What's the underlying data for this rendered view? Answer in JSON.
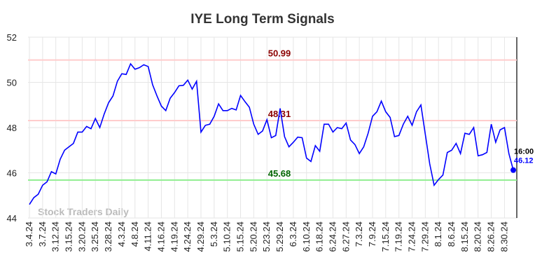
{
  "chart_data": {
    "type": "line",
    "title": "IYE Long Term Signals",
    "watermark": "Stock Traders Daily",
    "categories": [
      "3.4.24",
      null,
      null,
      "3.7.24",
      null,
      null,
      "3.12.24",
      null,
      null,
      "3.15.24",
      null,
      null,
      "3.20.24",
      null,
      null,
      "3.25.24",
      null,
      null,
      "3.28.24",
      null,
      null,
      "4.3.24",
      null,
      null,
      "4.8.24",
      null,
      null,
      "4.11.24",
      null,
      null,
      "4.16.24",
      null,
      null,
      "4.19.24",
      null,
      null,
      "4.24.24",
      null,
      null,
      "4.29.24",
      null,
      null,
      "5.3.24",
      null,
      null,
      "5.10.24",
      null,
      null,
      "5.15.24",
      null,
      null,
      "5.20.24",
      null,
      null,
      "5.23.24",
      null,
      null,
      "5.29.24",
      null,
      null,
      "6.3.24",
      null,
      null,
      "6.10.24",
      null,
      null,
      "6.18.24",
      null,
      null,
      "6.24.24",
      null,
      null,
      "6.27.24",
      null,
      null,
      "7.3.24",
      null,
      null,
      "7.9.24",
      null,
      null,
      "7.15.24",
      null,
      null,
      "7.19.24",
      null,
      null,
      "7.24.24",
      null,
      null,
      "7.29.24",
      null,
      null,
      "8.1.24",
      null,
      null,
      "8.6.24",
      null,
      null,
      "8.15.24",
      null,
      null,
      "8.20.24",
      null,
      null,
      "8.26.24",
      null,
      null,
      "8.30.24",
      null,
      null
    ],
    "series": [
      {
        "color": "#0000ff",
        "values": [
          44.6,
          44.9,
          45.05,
          45.45,
          45.6,
          46.05,
          45.95,
          46.6,
          47.0,
          47.15,
          47.3,
          47.8,
          47.8,
          48.05,
          47.95,
          48.4,
          48.0,
          48.6,
          49.1,
          49.4,
          50.05,
          50.38,
          50.35,
          50.82,
          50.58,
          50.65,
          50.78,
          50.7,
          49.9,
          49.4,
          48.95,
          48.75,
          49.3,
          49.55,
          49.85,
          49.87,
          50.1,
          49.7,
          50.05,
          47.8,
          48.1,
          48.15,
          48.5,
          49.05,
          48.75,
          48.75,
          48.85,
          48.78,
          49.42,
          49.15,
          48.9,
          48.15,
          47.7,
          47.85,
          48.35,
          47.55,
          47.65,
          48.85,
          47.6,
          47.15,
          47.35,
          47.58,
          47.55,
          46.65,
          46.5,
          47.2,
          46.95,
          48.15,
          48.15,
          47.8,
          48.0,
          47.95,
          48.2,
          47.45,
          47.25,
          46.85,
          47.15,
          47.75,
          48.5,
          48.7,
          49.17,
          48.7,
          48.45,
          47.6,
          47.65,
          48.15,
          48.5,
          48.1,
          48.7,
          49.0,
          47.7,
          46.4,
          45.45,
          45.7,
          45.9,
          46.9,
          47.0,
          47.3,
          46.85,
          47.75,
          47.7,
          48.0,
          46.75,
          46.8,
          46.9,
          48.15,
          47.35,
          47.9,
          48.0,
          46.85,
          46.12
        ]
      }
    ],
    "last_time": "16:00",
    "levels": [
      {
        "value": 50.99,
        "color": "#ffcccc",
        "label_color": "#8b0000"
      },
      {
        "value": 48.31,
        "color": "#ffcccc",
        "label_color": "#8b0000"
      },
      {
        "value": 45.68,
        "color": "#90ee90",
        "label_color": "#006400"
      }
    ],
    "ylim": [
      44,
      52
    ],
    "yticks": [
      44,
      46,
      48,
      50,
      52
    ],
    "grid": true
  }
}
